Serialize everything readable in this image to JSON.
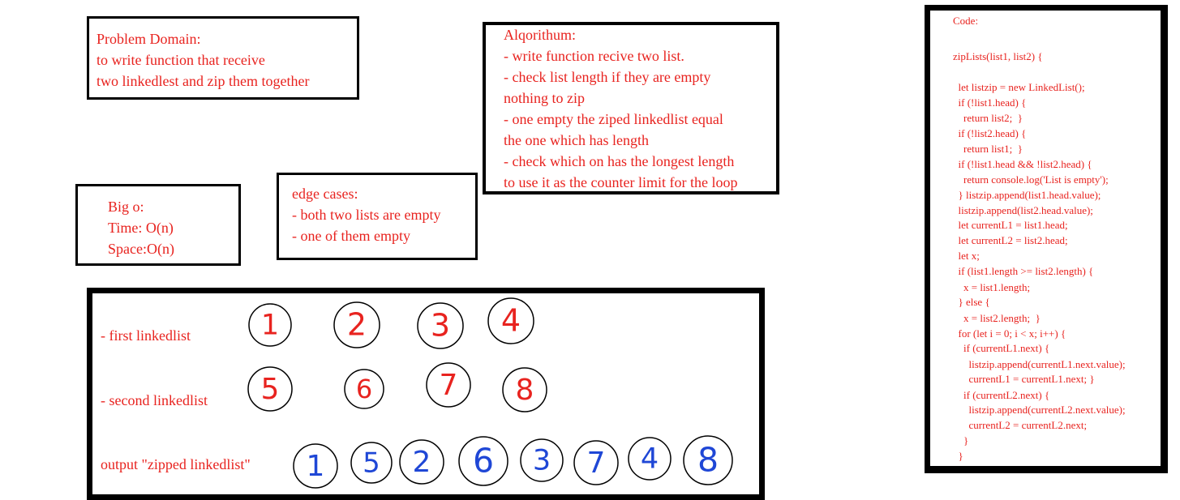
{
  "problem_domain": {
    "lines": [
      "Problem Domain:",
      "to write function that receive",
      "two linkedlest and zip them together"
    ]
  },
  "algorithm": {
    "lines": [
      "Alqorithum:",
      "- write function recive two list.",
      "- check list length if they are empty",
      "nothing to zip",
      "- one empty the ziped linkedlist equal",
      "the one which has length",
      "- check which on has the longest length",
      "to use it as the counter limit for the loop"
    ]
  },
  "big_o": {
    "lines": [
      "Big o:",
      "Time: O(n)",
      "Space:O(n)"
    ]
  },
  "edge_cases": {
    "lines": [
      "edge cases:",
      "- both two lists are empty",
      "- one of them empty"
    ]
  },
  "example": {
    "first_label": "- first linkedlist",
    "second_label": "- second linkedlist",
    "output_label": "output \"zipped linkedlist\"",
    "first_values": [
      "1",
      "2",
      "3",
      "4"
    ],
    "second_values": [
      "5",
      "6",
      "7",
      "8"
    ],
    "output_values": [
      "1",
      "5",
      "2",
      "6",
      "3",
      "7",
      "4",
      "8"
    ],
    "input_color": "#e8231f",
    "output_color": "#1f47d6",
    "circle_color": "#000000"
  },
  "code": {
    "lines": [
      "Code:",
      "",
      "zipLists(list1, list2) {",
      "",
      "  let listzip = new LinkedList();",
      "  if (!list1.head) {",
      "    return list2;  }",
      "  if (!list2.head) {",
      "    return list1;  }",
      "  if (!list1.head && !list2.head) {",
      "    return console.log('List is empty');",
      "  } listzip.append(list1.head.value);",
      "  listzip.append(list2.head.value);",
      "  let currentL1 = list1.head;",
      "  let currentL2 = list2.head;",
      "  let x;",
      "  if (list1.length >= list2.length) {",
      "    x = list1.length;",
      "  } else {",
      "    x = list2.length;  }",
      "  for (let i = 0; i < x; i++) {",
      "    if (currentL1.next) {",
      "      listzip.append(currentL1.next.value);",
      "      currentL1 = currentL1.next; }",
      "    if (currentL2.next) {",
      "      listzip.append(currentL2.next.value);",
      "      currentL2 = currentL2.next;",
      "    }",
      "  }"
    ]
  }
}
